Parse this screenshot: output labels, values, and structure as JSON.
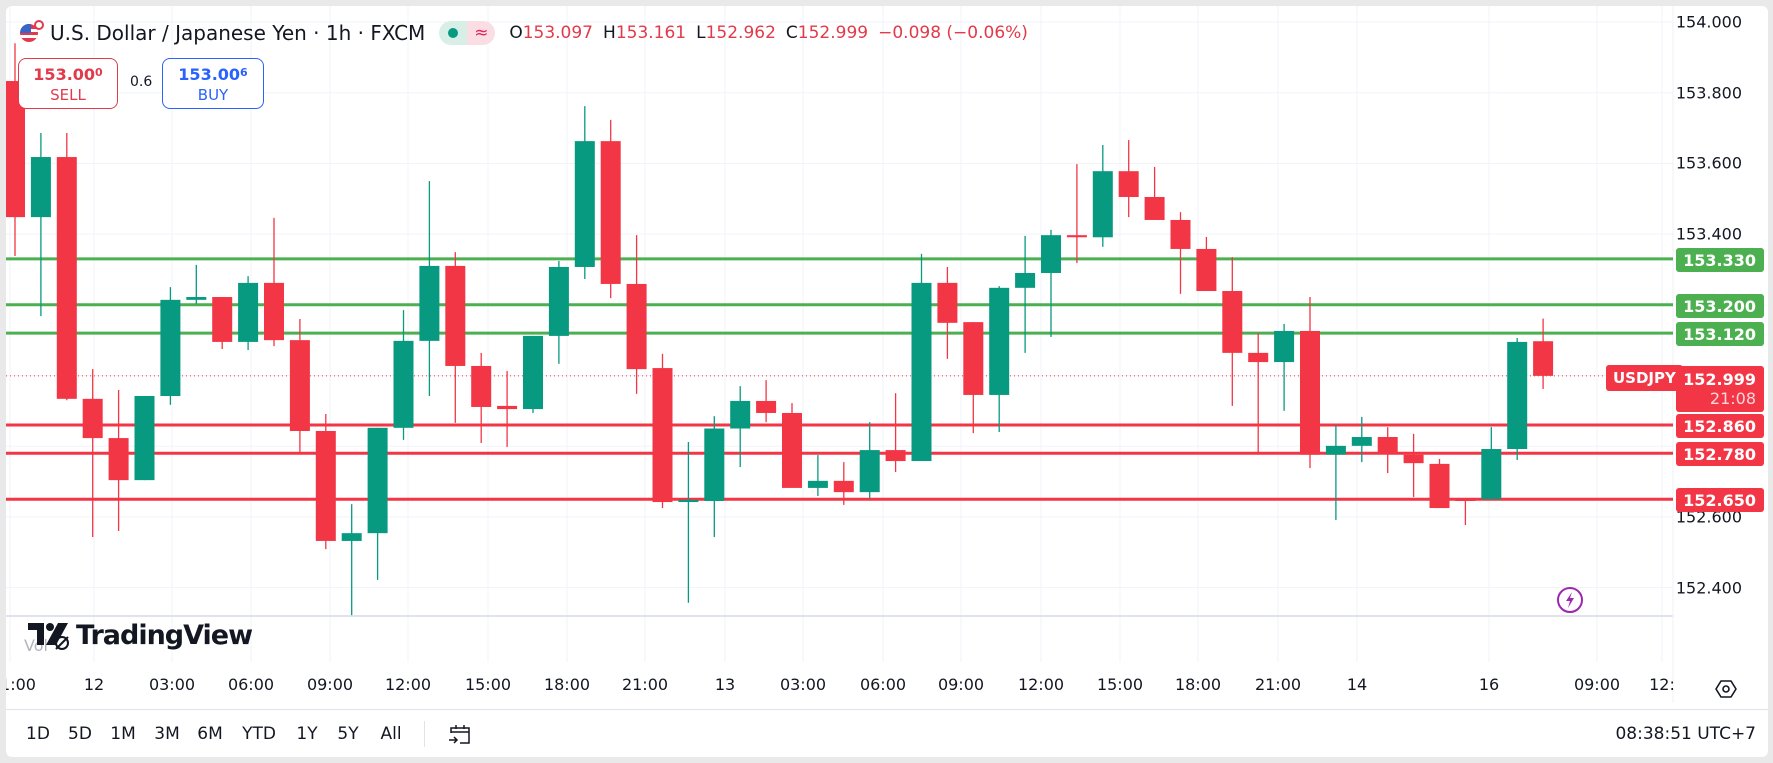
{
  "header": {
    "title": "U.S. Dollar / Japanese Yen · 1h · FXCM",
    "market_status": {
      "open_dot_color": "#089981",
      "symbol": "≈"
    },
    "ohlc": {
      "o_label": "O",
      "o": "153.097",
      "h_label": "H",
      "h": "153.161",
      "l_label": "L",
      "l": "152.962",
      "c_label": "C",
      "c": "152.999",
      "change": "−0.098 (−0.06%)"
    }
  },
  "trade": {
    "sell_price": "153.00",
    "sell_price_sup": "0",
    "sell_label": "SELL",
    "spread": "0.6",
    "buy_price": "153.00",
    "buy_price_sup": "6",
    "buy_label": "BUY"
  },
  "price_axis": {
    "ticks": [
      "154.000",
      "153.800",
      "153.600",
      "153.400",
      "152.600",
      "152.400"
    ]
  },
  "levels": {
    "resistance": [
      "153.330",
      "153.200",
      "153.120"
    ],
    "support": [
      "152.860",
      "152.780",
      "152.650"
    ],
    "resistance_color": "#4caf50",
    "support_color": "#f23645"
  },
  "last_price": {
    "symbol": "USDJPY",
    "price": "152.999",
    "countdown": "21:08"
  },
  "time_axis": {
    "labels": [
      "1:00",
      "12",
      "03:00",
      "06:00",
      "09:00",
      "12:00",
      "15:00",
      "18:00",
      "21:00",
      "13",
      "03:00",
      "06:00",
      "09:00",
      "12:00",
      "15:00",
      "18:00",
      "21:00",
      "14",
      "16",
      "09:00",
      "12:"
    ]
  },
  "watermark": {
    "brand": "TradingView",
    "vol_label": "Vol"
  },
  "toolbar": {
    "ranges": [
      "1D",
      "5D",
      "1M",
      "3M",
      "6M",
      "YTD",
      "1Y",
      "5Y",
      "All"
    ],
    "clock": "08:38:51 UTC+7"
  },
  "colors": {
    "up": "#089981",
    "down": "#f23645",
    "grid": "#f0f3fa"
  },
  "chart_data": {
    "type": "candlestick",
    "title": "U.S. Dollar / Japanese Yen · 1h · FXCM",
    "symbol": "USDJPY",
    "interval": "1h",
    "xlabel": "",
    "ylabel": "",
    "ylim": [
      152.33,
      154.05
    ],
    "y_ticks": [
      152.4,
      152.6,
      153.4,
      153.6,
      153.8,
      154.0
    ],
    "x_tick_labels": [
      "1:00",
      "12",
      "03:00",
      "06:00",
      "09:00",
      "12:00",
      "15:00",
      "18:00",
      "21:00",
      "13",
      "03:00",
      "06:00",
      "09:00",
      "12:00",
      "15:00",
      "18:00",
      "21:00",
      "14",
      "16",
      "09:00",
      "12:"
    ],
    "horizontal_lines": [
      {
        "price": 153.33,
        "color": "green"
      },
      {
        "price": 153.2,
        "color": "green"
      },
      {
        "price": 153.12,
        "color": "green"
      },
      {
        "price": 152.86,
        "color": "red"
      },
      {
        "price": 152.78,
        "color": "red"
      },
      {
        "price": 152.65,
        "color": "red"
      }
    ],
    "last_price": 152.999,
    "candles": [
      [
        153.833,
        153.94,
        153.338,
        153.448
      ],
      [
        153.448,
        153.686,
        153.168,
        153.618
      ],
      [
        153.618,
        153.686,
        152.93,
        152.934
      ],
      [
        152.934,
        153.018,
        152.543,
        152.823
      ],
      [
        152.823,
        152.959,
        152.56,
        152.704
      ],
      [
        152.704,
        152.942,
        152.704,
        152.942
      ],
      [
        152.942,
        153.25,
        152.917,
        153.214
      ],
      [
        153.214,
        153.313,
        153.202,
        153.222
      ],
      [
        153.222,
        153.222,
        153.075,
        153.095
      ],
      [
        153.095,
        153.281,
        153.072,
        153.262
      ],
      [
        153.262,
        153.446,
        153.083,
        153.1
      ],
      [
        153.1,
        153.16,
        152.784,
        152.843
      ],
      [
        152.843,
        152.891,
        152.509,
        152.532
      ],
      [
        152.532,
        152.636,
        152.322,
        152.554
      ],
      [
        152.554,
        152.852,
        152.422,
        152.852
      ],
      [
        152.852,
        153.185,
        152.818,
        153.098
      ],
      [
        153.098,
        153.55,
        152.942,
        153.31
      ],
      [
        153.31,
        153.349,
        152.866,
        153.027
      ],
      [
        153.027,
        153.064,
        152.809,
        152.911
      ],
      [
        152.914,
        153.013,
        152.798,
        152.905
      ],
      [
        152.905,
        153.112,
        152.894,
        153.112
      ],
      [
        153.112,
        153.324,
        153.033,
        153.307
      ],
      [
        153.307,
        153.762,
        153.273,
        153.663
      ],
      [
        153.663,
        153.723,
        153.219,
        153.259
      ],
      [
        153.259,
        153.397,
        152.948,
        153.018
      ],
      [
        153.021,
        153.061,
        152.625,
        152.642
      ],
      [
        152.642,
        152.812,
        152.357,
        152.648
      ],
      [
        152.645,
        152.885,
        152.543,
        152.85
      ],
      [
        152.85,
        152.97,
        152.741,
        152.928
      ],
      [
        152.928,
        152.987,
        152.868,
        152.894
      ],
      [
        152.894,
        152.922,
        152.682,
        152.682
      ],
      [
        152.682,
        152.775,
        152.659,
        152.702
      ],
      [
        152.702,
        152.755,
        152.634,
        152.67
      ],
      [
        152.67,
        152.868,
        152.653,
        152.789
      ],
      [
        152.789,
        152.95,
        152.727,
        152.758
      ],
      [
        152.758,
        153.344,
        152.758,
        153.262
      ],
      [
        153.262,
        153.307,
        153.047,
        153.149
      ],
      [
        153.151,
        153.151,
        152.837,
        152.945
      ],
      [
        152.945,
        153.253,
        152.84,
        153.248
      ],
      [
        153.248,
        153.395,
        153.064,
        153.29
      ],
      [
        153.29,
        153.412,
        153.109,
        153.397
      ],
      [
        153.397,
        153.598,
        153.318,
        153.391
      ],
      [
        153.391,
        153.652,
        153.364,
        153.578
      ],
      [
        153.578,
        153.666,
        153.448,
        153.505
      ],
      [
        153.505,
        153.59,
        153.44,
        153.44
      ],
      [
        153.44,
        153.462,
        153.231,
        153.358
      ],
      [
        153.358,
        153.392,
        153.239,
        153.239
      ],
      [
        153.239,
        153.335,
        152.914,
        153.064
      ],
      [
        153.064,
        153.12,
        152.776,
        153.038
      ],
      [
        153.038,
        153.146,
        152.9,
        153.126
      ],
      [
        153.126,
        153.222,
        152.738,
        152.776
      ],
      [
        152.776,
        152.86,
        152.591,
        152.801
      ],
      [
        152.801,
        152.883,
        152.755,
        152.826
      ],
      [
        152.826,
        152.854,
        152.724,
        152.778
      ],
      [
        152.776,
        152.835,
        152.656,
        152.752
      ],
      [
        152.75,
        152.764,
        152.625,
        152.625
      ],
      [
        152.653,
        152.653,
        152.577,
        152.645
      ],
      [
        152.65,
        152.854,
        152.65,
        152.792
      ],
      [
        152.792,
        153.106,
        152.761,
        153.095
      ],
      [
        153.097,
        153.161,
        152.962,
        152.999
      ]
    ],
    "candle_format": "[open, high, low, close]"
  }
}
